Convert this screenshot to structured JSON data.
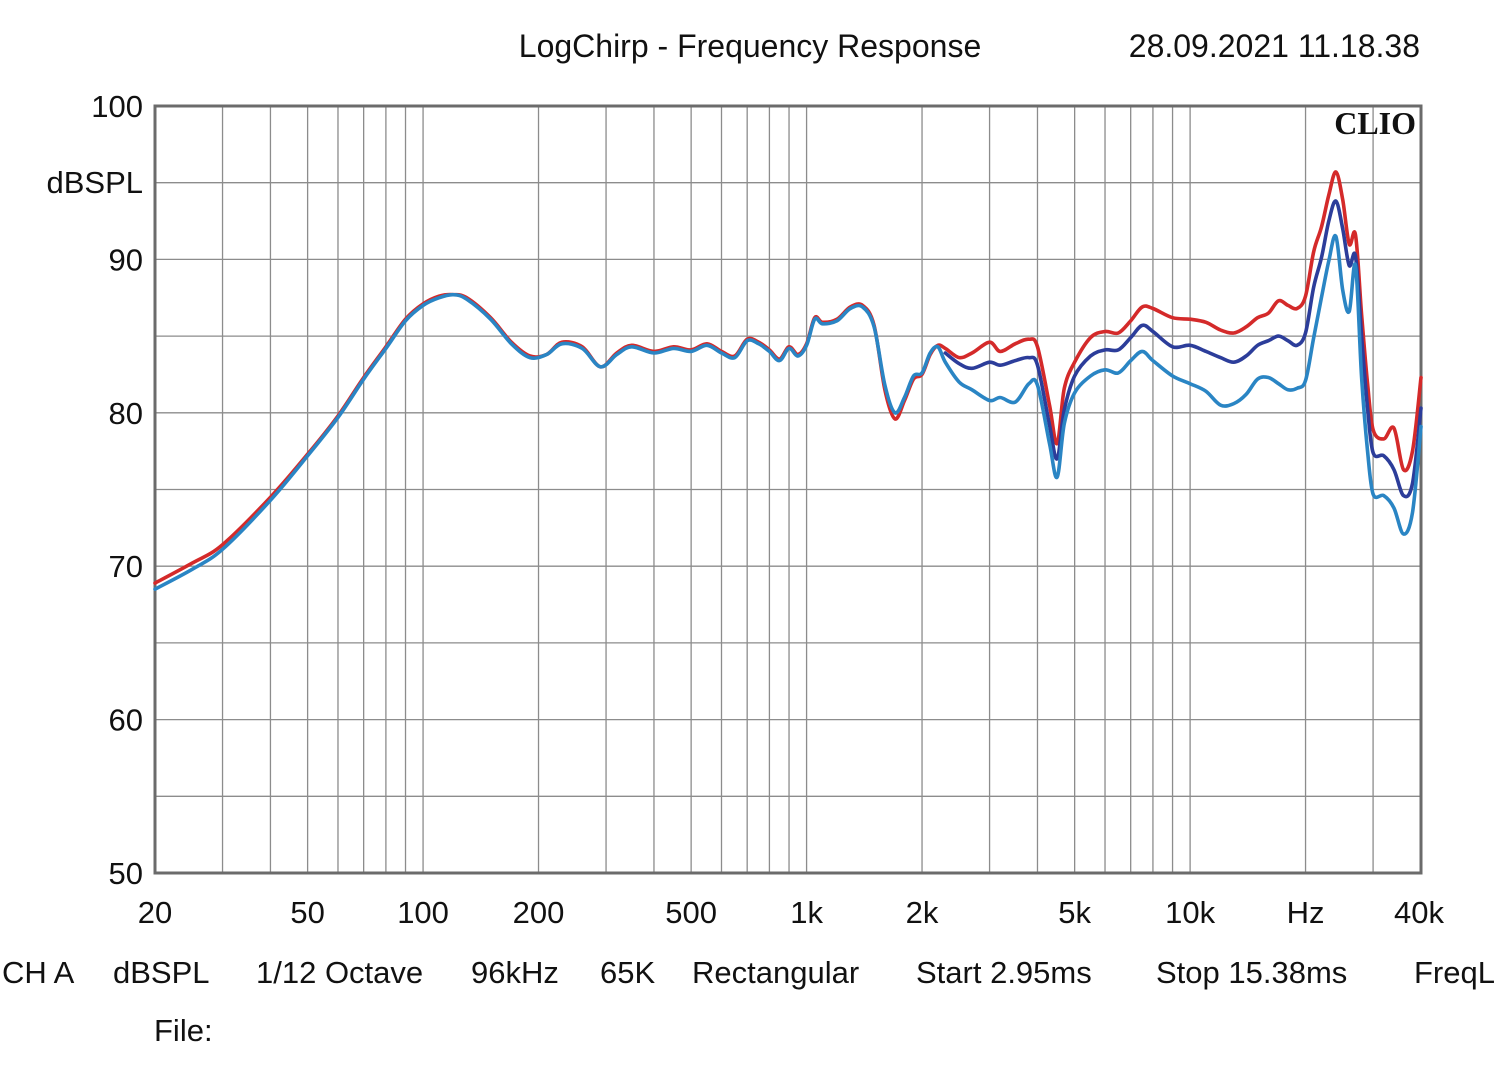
{
  "chart_data": {
    "type": "line",
    "title": "LogChirp - Frequency Response",
    "timestamp": "28.09.2021 11.18.38",
    "brand": "CLIO",
    "ylabel": "dBSPL",
    "x_scale": "log",
    "xlim": [
      20,
      40000
    ],
    "ylim": [
      50,
      100
    ],
    "grid": true,
    "y_ticks": [
      {
        "value": 100,
        "label": "100"
      },
      {
        "value": 90,
        "label": "90"
      },
      {
        "value": 80,
        "label": "80"
      },
      {
        "value": 70,
        "label": "70"
      },
      {
        "value": 60,
        "label": "60"
      },
      {
        "value": 50,
        "label": "50"
      }
    ],
    "x_ticks": [
      {
        "value": 20,
        "label": "20"
      },
      {
        "value": 50,
        "label": "50"
      },
      {
        "value": 100,
        "label": "100"
      },
      {
        "value": 200,
        "label": "200"
      },
      {
        "value": 500,
        "label": "500"
      },
      {
        "value": 1000,
        "label": "1k"
      },
      {
        "value": 2000,
        "label": "2k"
      },
      {
        "value": 5000,
        "label": "5k"
      },
      {
        "value": 10000,
        "label": "10k"
      },
      {
        "value": 20000,
        "label": "Hz"
      },
      {
        "value": 40000,
        "label": "40k"
      }
    ],
    "series": [
      {
        "color": "#d42a2a",
        "x": [
          20,
          25,
          30,
          40,
          50,
          60,
          70,
          80,
          90,
          100,
          110,
          120,
          130,
          150,
          170,
          190,
          210,
          230,
          260,
          290,
          320,
          350,
          400,
          450,
          500,
          550,
          600,
          650,
          700,
          750,
          800,
          850,
          900,
          950,
          1000,
          1050,
          1100,
          1200,
          1300,
          1400,
          1500,
          1600,
          1700,
          1800,
          1900,
          2000,
          2100,
          2200,
          2300,
          2500,
          2700,
          3000,
          3200,
          3500,
          3800,
          4000,
          4300,
          4500,
          4700,
          5000,
          5500,
          6000,
          6500,
          7000,
          7500,
          8000,
          9000,
          10000,
          11000,
          12000,
          13000,
          14000,
          15000,
          16000,
          17000,
          18000,
          19000,
          20000,
          21000,
          22000,
          23000,
          24000,
          25000,
          26000,
          27000,
          28000,
          29000,
          30000,
          32000,
          34000,
          36000,
          38000,
          40000
        ],
        "y": [
          68.9,
          70.2,
          71.4,
          74.5,
          77.3,
          79.8,
          82.3,
          84.3,
          86.1,
          87.1,
          87.6,
          87.7,
          87.5,
          86.2,
          84.6,
          83.7,
          83.8,
          84.6,
          84.3,
          83.0,
          83.9,
          84.4,
          84.0,
          84.3,
          84.1,
          84.5,
          84.0,
          83.7,
          84.8,
          84.6,
          84.1,
          83.5,
          84.3,
          83.8,
          84.5,
          86.2,
          85.9,
          86.1,
          86.9,
          87.0,
          85.7,
          81.5,
          79.6,
          80.8,
          82.2,
          82.5,
          83.8,
          84.4,
          84.2,
          83.6,
          83.9,
          84.6,
          84.0,
          84.5,
          84.8,
          84.3,
          80.5,
          78.0,
          81.6,
          83.3,
          84.9,
          85.3,
          85.2,
          86.0,
          86.9,
          86.8,
          86.2,
          86.1,
          85.9,
          85.4,
          85.2,
          85.6,
          86.2,
          86.5,
          87.3,
          87.0,
          86.8,
          87.6,
          90.5,
          92.1,
          94.2,
          95.7,
          93.9,
          91.0,
          91.6,
          86.4,
          82.0,
          78.9,
          78.3,
          79.0,
          76.3,
          77.5,
          82.3
        ]
      },
      {
        "color": "#2c3d9a",
        "x": [
          2300,
          2500,
          2700,
          3000,
          3200,
          3500,
          3800,
          4000,
          4300,
          4500,
          4700,
          5000,
          5500,
          6000,
          6500,
          7000,
          7500,
          8000,
          9000,
          10000,
          11000,
          12000,
          13000,
          14000,
          15000,
          16000,
          17000,
          18000,
          19000,
          20000,
          21000,
          22000,
          23000,
          24000,
          25000,
          26000,
          27000,
          28000,
          29000,
          30000,
          32000,
          34000,
          36000,
          38000,
          40000
        ],
        "y": [
          83.9,
          83.2,
          82.9,
          83.3,
          83.1,
          83.4,
          83.6,
          83.1,
          79.2,
          77.0,
          80.2,
          82.4,
          83.7,
          84.1,
          84.1,
          84.9,
          85.7,
          85.3,
          84.3,
          84.4,
          84.0,
          83.6,
          83.3,
          83.7,
          84.4,
          84.7,
          85.0,
          84.7,
          84.4,
          85.2,
          88.2,
          90.1,
          92.5,
          93.8,
          92.0,
          89.6,
          90.2,
          85.0,
          80.4,
          77.4,
          77.2,
          76.3,
          74.6,
          75.4,
          80.3
        ]
      },
      {
        "color": "#2a85c4",
        "x": [
          20,
          25,
          30,
          40,
          50,
          60,
          70,
          80,
          90,
          100,
          110,
          120,
          130,
          150,
          170,
          190,
          210,
          230,
          260,
          290,
          320,
          350,
          400,
          450,
          500,
          550,
          600,
          650,
          700,
          750,
          800,
          850,
          900,
          950,
          1000,
          1050,
          1100,
          1200,
          1300,
          1400,
          1500,
          1600,
          1700,
          1800,
          1900,
          2000,
          2100,
          2200,
          2300,
          2500,
          2700,
          3000,
          3200,
          3500,
          3800,
          4000,
          4300,
          4500,
          4700,
          5000,
          5500,
          6000,
          6500,
          7000,
          7500,
          8000,
          9000,
          10000,
          11000,
          12000,
          13000,
          14000,
          15000,
          16000,
          17000,
          18000,
          19000,
          20000,
          21000,
          22000,
          23000,
          24000,
          25000,
          26000,
          27000,
          28000,
          29000,
          30000,
          32000,
          34000,
          36000,
          38000,
          40000
        ],
        "y": [
          68.5,
          69.8,
          71.1,
          74.3,
          77.2,
          79.7,
          82.2,
          84.2,
          86.0,
          87.0,
          87.5,
          87.7,
          87.4,
          86.1,
          84.5,
          83.6,
          83.8,
          84.5,
          84.2,
          83.0,
          83.8,
          84.3,
          83.9,
          84.2,
          84.0,
          84.4,
          83.9,
          83.6,
          84.7,
          84.5,
          84.0,
          83.4,
          84.2,
          83.7,
          84.4,
          86.1,
          85.8,
          86.0,
          86.8,
          86.9,
          85.6,
          81.8,
          80.0,
          81.0,
          82.4,
          82.6,
          83.9,
          84.3,
          83.3,
          82.0,
          81.5,
          80.8,
          81.0,
          80.7,
          81.9,
          81.8,
          78.0,
          75.8,
          79.3,
          81.3,
          82.4,
          82.8,
          82.6,
          83.4,
          84.0,
          83.4,
          82.4,
          81.9,
          81.4,
          80.5,
          80.6,
          81.2,
          82.2,
          82.3,
          81.9,
          81.5,
          81.6,
          82.1,
          84.9,
          87.5,
          89.9,
          91.5,
          88.0,
          86.6,
          89.6,
          82.3,
          77.6,
          74.7,
          74.6,
          73.8,
          72.1,
          73.5,
          79.1
        ]
      }
    ],
    "footer": {
      "channel": "CH A",
      "unit": "dBSPL",
      "smoothing": "1/12 Octave",
      "sample_rate": "96kHz",
      "size": "65K",
      "window": "Rectangular",
      "start": "Start 2.95ms",
      "stop": "Stop 15.38ms",
      "freq": "FreqL",
      "file_label": "File:"
    }
  }
}
